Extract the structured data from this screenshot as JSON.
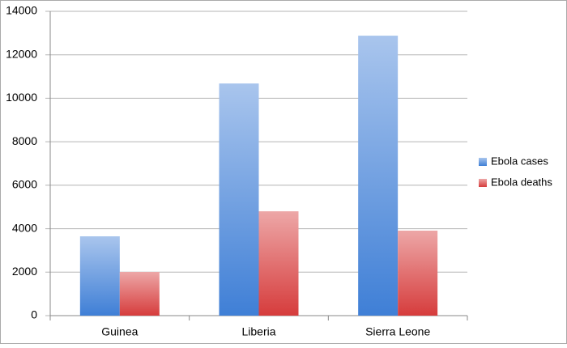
{
  "chart_data": {
    "type": "bar",
    "categories": [
      "Guinea",
      "Liberia",
      "Sierra Leone"
    ],
    "series": [
      {
        "name": "Ebola cases",
        "color": "#3f7fd6",
        "values": [
          3650,
          10680,
          12880
        ]
      },
      {
        "name": "Ebola deaths",
        "color": "#d63c3c",
        "values": [
          2010,
          4800,
          3910
        ]
      }
    ],
    "ylim": [
      0,
      14000
    ],
    "yticks": [
      0,
      2000,
      4000,
      6000,
      8000,
      10000,
      12000,
      14000
    ],
    "grid": true,
    "legend": "right"
  }
}
